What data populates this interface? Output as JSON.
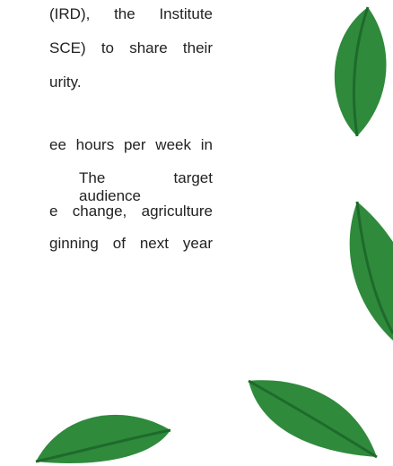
{
  "paragraphs": [
    {
      "lines": [
        "(IRD), the Institute",
        "SCE) to share their",
        "urity."
      ]
    },
    {
      "lines": [
        "ee hours per week in",
        "The target audience",
        "e change, agriculture",
        "ginning of next year"
      ]
    }
  ]
}
